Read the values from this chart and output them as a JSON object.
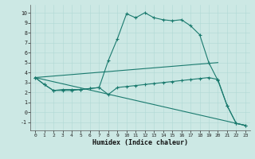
{
  "background_color": "#cce8e4",
  "line_color": "#1a7a6e",
  "xlabel": "Humidex (Indice chaleur)",
  "xlim": [
    -0.5,
    23.5
  ],
  "ylim": [
    -1.8,
    10.8
  ],
  "xticks": [
    0,
    1,
    2,
    3,
    4,
    5,
    6,
    7,
    8,
    9,
    10,
    11,
    12,
    13,
    14,
    15,
    16,
    17,
    18,
    19,
    20,
    21,
    22,
    23
  ],
  "yticks": [
    -1,
    0,
    1,
    2,
    3,
    4,
    5,
    6,
    7,
    8,
    9,
    10
  ],
  "series1": {
    "x": [
      0,
      1,
      2,
      3,
      4,
      5,
      6,
      7,
      8,
      9,
      10,
      11,
      12,
      13,
      14,
      15,
      16,
      17,
      18,
      19,
      20,
      21,
      22,
      23
    ],
    "y": [
      3.5,
      2.8,
      2.2,
      2.2,
      2.2,
      2.3,
      2.4,
      2.5,
      5.2,
      7.4,
      9.9,
      9.5,
      10.0,
      9.5,
      9.3,
      9.2,
      9.3,
      8.7,
      7.8,
      5.0,
      3.2,
      0.7,
      -1.1,
      -1.3
    ]
  },
  "series2": {
    "x": [
      0,
      1,
      2,
      3,
      4,
      5,
      6,
      7,
      8,
      9,
      10,
      11,
      12,
      13,
      14,
      15,
      16,
      17,
      18,
      19,
      20,
      21,
      22,
      23
    ],
    "y": [
      3.5,
      2.8,
      2.2,
      2.3,
      2.3,
      2.3,
      2.4,
      2.5,
      1.8,
      2.5,
      2.6,
      2.7,
      2.8,
      2.9,
      3.0,
      3.1,
      3.2,
      3.3,
      3.4,
      3.5,
      3.3,
      0.7,
      -1.1,
      -1.3
    ]
  },
  "series3": {
    "x": [
      0,
      23
    ],
    "y": [
      3.5,
      -1.3
    ]
  },
  "series4": {
    "x": [
      0,
      20
    ],
    "y": [
      3.5,
      5.0
    ]
  }
}
